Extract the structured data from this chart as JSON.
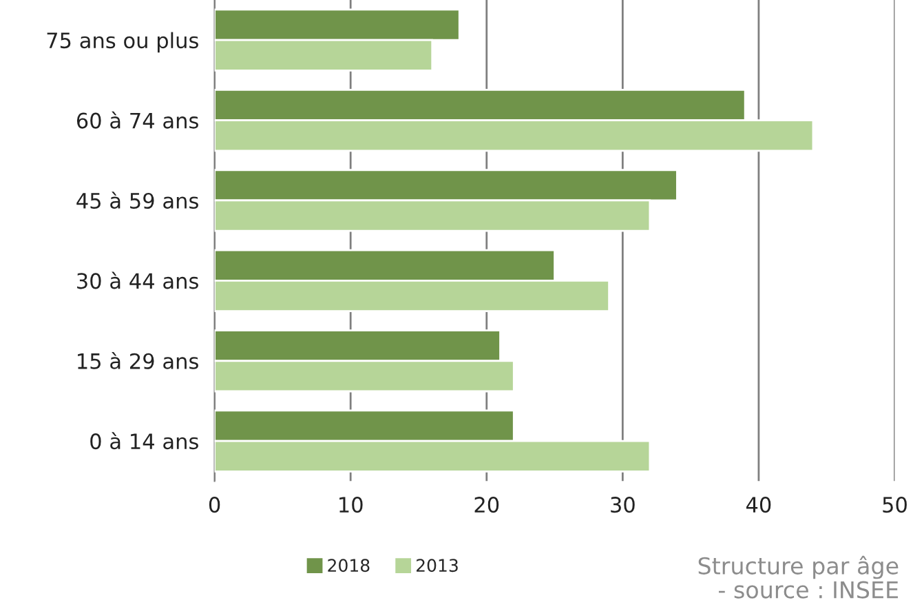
{
  "chart_data": {
    "type": "bar",
    "orientation": "horizontal",
    "categories": [
      "75 ans ou plus",
      "60 à 74 ans",
      "45 à 59 ans",
      "30 à 44 ans",
      "15 à 29 ans",
      "0 à 14 ans"
    ],
    "series": [
      {
        "name": "2018",
        "color": "#70944a",
        "values": [
          18,
          39,
          34,
          25,
          21,
          22
        ]
      },
      {
        "name": "2013",
        "color": "#b6d598",
        "values": [
          16,
          44,
          32,
          29,
          22,
          32
        ]
      }
    ],
    "xlim": [
      0,
      50
    ],
    "xticks": [
      0,
      10,
      20,
      30,
      40,
      50
    ],
    "grid": "x",
    "legend": "bottom",
    "annotations": [
      "Structure par âge\n- source : INSEE"
    ]
  }
}
